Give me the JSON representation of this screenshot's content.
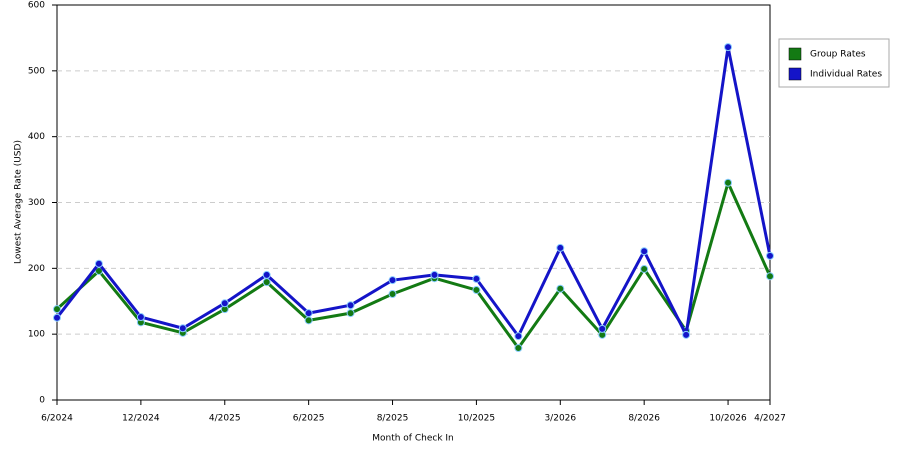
{
  "chart_data": {
    "type": "line",
    "x_label": "Month of Check In",
    "y_label": "Lowest Average Rate (USD)",
    "categories": [
      "6/2024",
      null,
      "12/2024",
      null,
      "4/2025",
      null,
      "6/2025",
      null,
      "8/2025",
      null,
      "10/2025",
      null,
      "3/2026",
      null,
      "8/2026",
      null,
      "10/2026",
      "4/2027"
    ],
    "series": [
      {
        "name": "Group Rates",
        "color": "#137a13",
        "values": [
          138,
          196,
          118,
          102,
          138,
          179,
          121,
          132,
          161,
          185,
          167,
          79,
          169,
          99,
          199,
          105,
          330,
          188
        ]
      },
      {
        "name": "Individual Rates",
        "color": "#1414c8",
        "values": [
          125,
          207,
          126,
          109,
          147,
          190,
          132,
          144,
          182,
          190,
          184,
          97,
          231,
          108,
          226,
          99,
          536,
          219
        ]
      }
    ],
    "ylim": [
      0,
      600
    ],
    "yticks": [
      0,
      100,
      200,
      300,
      400,
      500,
      600
    ],
    "grid": true,
    "legend": "right"
  }
}
